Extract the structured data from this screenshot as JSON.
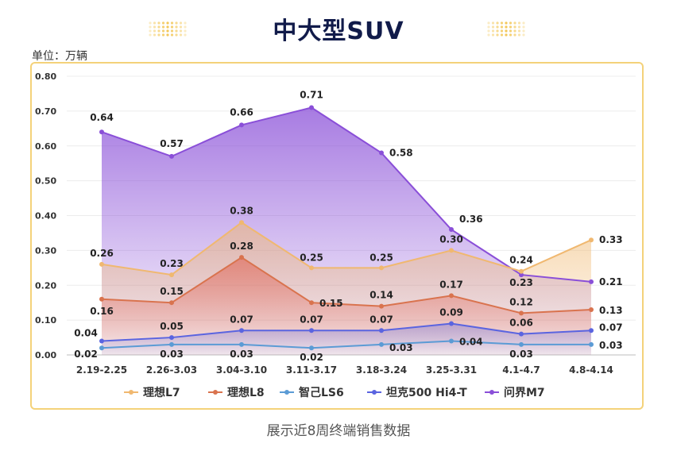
{
  "page": {
    "title": "中大型SUV",
    "unit_label": "单位：万辆",
    "footer": "展示近8周终端销售数据"
  },
  "chart_data": {
    "type": "line",
    "title": "中大型SUV",
    "ylabel": "单位：万辆",
    "xlabel": "",
    "ylim": [
      0,
      0.8
    ],
    "yticks": [
      "0.00",
      "0.10",
      "0.20",
      "0.30",
      "0.40",
      "0.50",
      "0.60",
      "0.70",
      "0.80"
    ],
    "categories": [
      "2.19-2.25",
      "2.26-3.03",
      "3.04-3.10",
      "3.11-3.17",
      "3.18-3.24",
      "3.25-3.31",
      "4.1-4.7",
      "4.8-4.14"
    ],
    "legend_position": "bottom",
    "series": [
      {
        "name": "理想L7",
        "color": "#f0b870",
        "values": [
          0.26,
          0.23,
          0.38,
          0.25,
          0.25,
          0.3,
          0.24,
          0.33
        ]
      },
      {
        "name": "理想L8",
        "color": "#d9734e",
        "values": [
          0.16,
          0.15,
          0.28,
          0.15,
          0.14,
          0.17,
          0.12,
          0.13
        ]
      },
      {
        "name": "智己LS6",
        "color": "#5b9bd5",
        "values": [
          0.02,
          0.03,
          0.03,
          0.02,
          0.03,
          0.04,
          0.03,
          0.03
        ]
      },
      {
        "name": "坦克500 Hi4-T",
        "color": "#5a64e0",
        "values": [
          0.04,
          0.05,
          0.07,
          0.07,
          0.07,
          0.09,
          0.06,
          0.07
        ]
      },
      {
        "name": "问界M7",
        "color": "#8a4fd8",
        "values": [
          0.64,
          0.57,
          0.66,
          0.71,
          0.58,
          0.36,
          0.23,
          0.21
        ]
      }
    ]
  }
}
